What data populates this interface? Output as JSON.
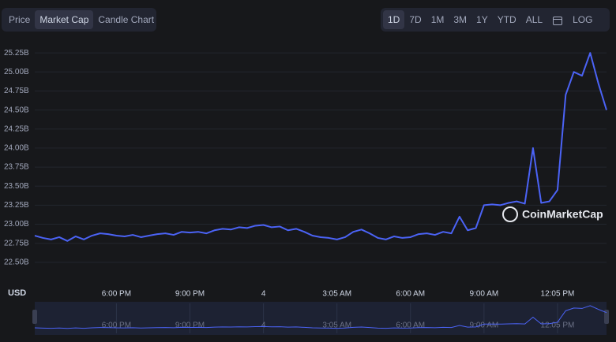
{
  "ui": {
    "tabs": [
      "Price",
      "Market Cap",
      "Candle Chart"
    ],
    "ranges": [
      "1D",
      "7D",
      "1M",
      "3M",
      "1Y",
      "YTD",
      "ALL"
    ],
    "log": "LOG",
    "currency": "USD",
    "watermark": "CoinMarketCap"
  },
  "chart_data": {
    "type": "line",
    "categories": [
      null,
      null,
      null,
      null,
      null,
      null,
      null,
      null,
      null,
      null,
      "6:00 PM",
      null,
      null,
      null,
      null,
      null,
      null,
      null,
      null,
      "9:00 PM",
      null,
      null,
      null,
      null,
      null,
      null,
      null,
      null,
      "4",
      null,
      null,
      null,
      null,
      null,
      null,
      null,
      null,
      "3:05 AM",
      null,
      null,
      null,
      null,
      null,
      null,
      null,
      null,
      "6:00 AM",
      null,
      null,
      null,
      null,
      null,
      null,
      null,
      null,
      "9:00 AM",
      null,
      null,
      null,
      null,
      null,
      null,
      null,
      null,
      "12:05 PM",
      null,
      null,
      null,
      null,
      null,
      null
    ],
    "series": [
      {
        "color": "#4b63f6",
        "values": [
          22.85,
          22.82,
          22.8,
          22.83,
          22.78,
          22.84,
          22.8,
          22.85,
          22.88,
          22.87,
          22.85,
          22.84,
          22.86,
          22.83,
          22.85,
          22.87,
          22.88,
          22.86,
          22.9,
          22.89,
          22.9,
          22.88,
          22.92,
          22.94,
          22.93,
          22.96,
          22.95,
          22.98,
          22.99,
          22.96,
          22.97,
          22.92,
          22.94,
          22.9,
          22.85,
          22.83,
          22.82,
          22.8,
          22.83,
          22.9,
          22.93,
          22.88,
          22.82,
          22.8,
          22.84,
          22.82,
          22.83,
          22.87,
          22.88,
          22.86,
          22.9,
          22.88,
          23.1,
          22.92,
          22.95,
          23.25,
          23.26,
          23.25,
          23.28,
          23.3,
          23.27,
          24.0,
          23.28,
          23.3,
          23.45,
          24.7,
          25.0,
          24.95,
          25.25,
          24.85,
          24.5
        ]
      }
    ],
    "ylim": [
      22.25,
      25.5
    ],
    "yticks": [
      {
        "value": 22.5,
        "label": "22.50B"
      },
      {
        "value": 22.75,
        "label": "22.75B"
      },
      {
        "value": 23,
        "label": "23.00B"
      },
      {
        "value": 23.25,
        "label": "23.25B"
      },
      {
        "value": 23.5,
        "label": "23.50B"
      },
      {
        "value": 23.75,
        "label": "23.75B"
      },
      {
        "value": 24,
        "label": "24.00B"
      },
      {
        "value": 24.25,
        "label": "24.25B"
      },
      {
        "value": 24.5,
        "label": "24.50B"
      },
      {
        "value": 24.75,
        "label": "24.75B"
      },
      {
        "value": 25,
        "label": "25.00B"
      },
      {
        "value": 25.25,
        "label": "25.25B"
      }
    ],
    "grid": true
  }
}
